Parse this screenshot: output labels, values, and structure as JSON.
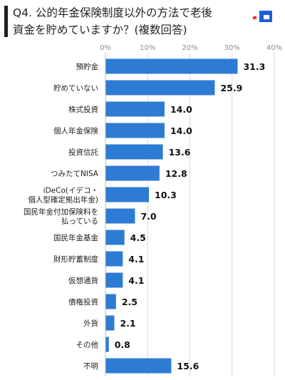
{
  "chart_data": {
    "type": "bar",
    "orientation": "horizontal",
    "title": "Q4. 公的年金保険制度以外の方法で老後\n資金を貯めていますか？(複数回答)",
    "categories": [
      "預貯金",
      "貯めていない",
      "株式投資",
      "個人年金保険",
      "投資信託",
      "つみたてNISA",
      "iDeCo(イデコ・\n個人型確定拠出年金)",
      "国民年金付加保険料を\n払っている",
      "国民年金基金",
      "財形貯蓄制度",
      "仮想通貨",
      "債権投資",
      "外貨",
      "その他",
      "不明"
    ],
    "values": [
      31.3,
      25.9,
      14.0,
      14.0,
      13.6,
      12.8,
      10.3,
      7.0,
      4.5,
      4.1,
      4.1,
      2.5,
      2.1,
      0.8,
      15.6
    ],
    "value_labels": [
      "31.3",
      "25.9",
      "14.0",
      "14.0",
      "13.6",
      "12.8",
      "10.3",
      "7.0",
      "4.5",
      "4.1",
      "4.1",
      "2.5",
      "2.1",
      "0.8",
      "15.6"
    ],
    "xlim": [
      0,
      40
    ],
    "x_ticks": [
      "0%",
      "10%",
      "20%",
      "30%",
      "40%"
    ],
    "x_tick_values": [
      0,
      10,
      20,
      30,
      40
    ],
    "grid": true,
    "bar_color": "#2e7bd3",
    "grid_color": "#d9d9d9"
  },
  "logo": {
    "name": "brand-logo-icon",
    "colors": [
      "#1f5fd6",
      "#e8332a"
    ]
  }
}
